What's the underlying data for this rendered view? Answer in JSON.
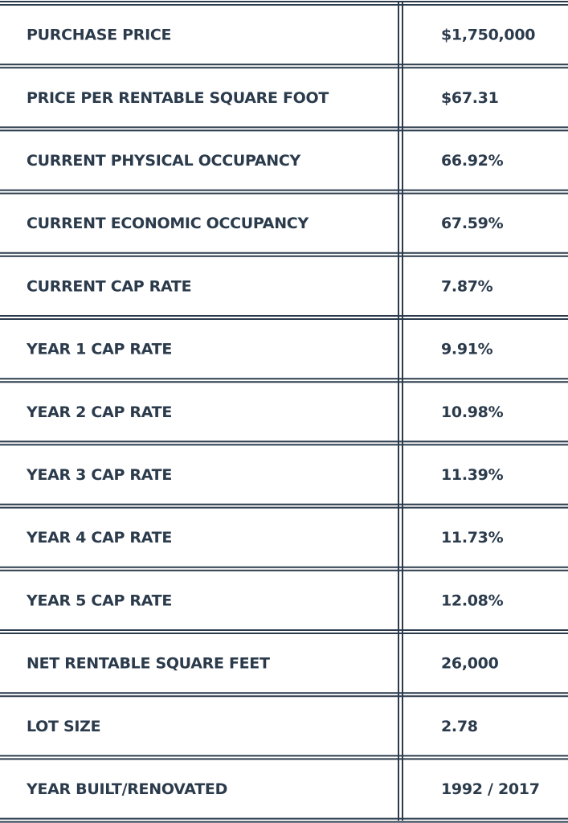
{
  "table": {
    "rows": [
      [
        "PURCHASE PRICE",
        "$1,750,000"
      ],
      [
        "PRICE PER RENTABLE SQUARE FOOT",
        "$67.31"
      ],
      [
        "CURRENT PHYSICAL OCCUPANCY",
        "66.92%"
      ],
      [
        "CURRENT ECONOMIC OCCUPANCY",
        "67.59%"
      ],
      [
        "CURRENT CAP RATE",
        "7.87%"
      ],
      [
        "YEAR 1 CAP RATE",
        "9.91%"
      ],
      [
        "YEAR 2 CAP RATE",
        "10.98%"
      ],
      [
        "YEAR 3 CAP RATE",
        "11.39%"
      ],
      [
        "YEAR 4 CAP RATE",
        "11.73%"
      ],
      [
        "YEAR 5 CAP RATE",
        "12.08%"
      ],
      [
        "NET RENTABLE SQUARE FEET",
        "26,000"
      ],
      [
        "LOT SIZE",
        "2.78"
      ],
      [
        "YEAR BUILT/RENOVATED",
        "1992 / 2017"
      ]
    ]
  }
}
